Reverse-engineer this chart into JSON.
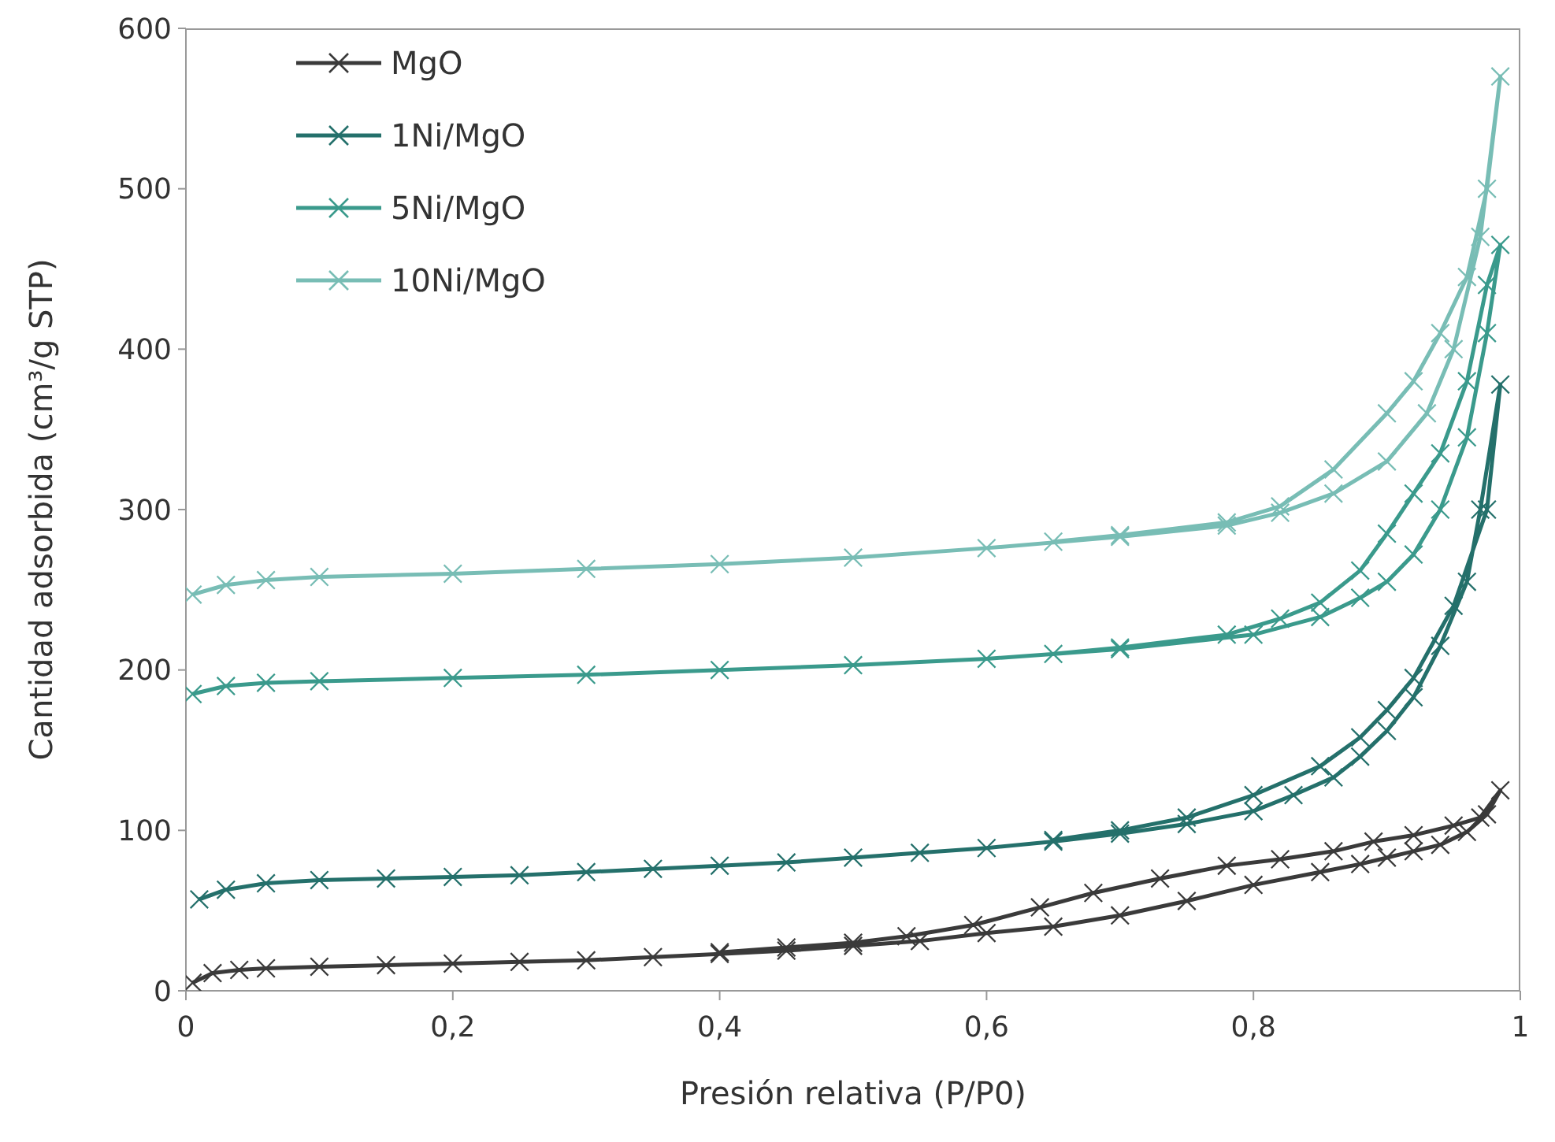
{
  "chart_data": {
    "type": "line",
    "xlabel": "Presión relativa  (P/P0)",
    "ylabel": "Cantidad adsorbida (cm³/g STP)",
    "xlim": [
      0,
      1
    ],
    "ylim": [
      0,
      600
    ],
    "xticks": [
      0,
      {
        "value": 0.2,
        "label": "0,2"
      },
      {
        "value": 0.4,
        "label": "0,4"
      },
      {
        "value": 0.6,
        "label": "0,6"
      },
      {
        "value": 0.8,
        "label": "0,8"
      },
      1
    ],
    "yticks": [
      0,
      100,
      200,
      300,
      400,
      500,
      600
    ],
    "grid": false,
    "legend": "top left",
    "marker": "cross",
    "line_style": "solid",
    "series": [
      {
        "name": "MgO",
        "color": "#3a3a3a",
        "x": [
          0.005,
          0.02,
          0.04,
          0.06,
          0.1,
          0.15,
          0.2,
          0.25,
          0.3,
          0.35,
          0.4,
          0.45,
          0.5,
          0.55,
          0.6,
          0.65,
          0.7,
          0.75,
          0.8,
          0.85,
          0.88,
          0.9,
          0.92,
          0.94,
          0.96,
          0.975,
          0.985,
          0.97,
          0.95,
          0.92,
          0.89,
          0.86,
          0.82,
          0.78,
          0.73,
          0.68,
          0.64,
          0.59,
          0.54,
          0.5,
          0.45,
          0.4
        ],
        "values": [
          5,
          11,
          13,
          14,
          15,
          16,
          17,
          18,
          19,
          21,
          23,
          25,
          28,
          31,
          36,
          40,
          47,
          56,
          66,
          74,
          79,
          83,
          87,
          91,
          99,
          110,
          125,
          108,
          103,
          97,
          93,
          87,
          82,
          78,
          70,
          61,
          52,
          41,
          34,
          30,
          27,
          24
        ]
      },
      {
        "name": "1Ni/MgO",
        "color": "#24706b",
        "x": [
          0.01,
          0.03,
          0.06,
          0.1,
          0.15,
          0.2,
          0.25,
          0.3,
          0.35,
          0.4,
          0.45,
          0.5,
          0.55,
          0.6,
          0.65,
          0.7,
          0.75,
          0.8,
          0.83,
          0.86,
          0.88,
          0.9,
          0.92,
          0.94,
          0.96,
          0.97,
          0.985,
          0.975,
          0.95,
          0.92,
          0.9,
          0.88,
          0.85,
          0.8,
          0.75,
          0.7,
          0.65
        ],
        "values": [
          57,
          63,
          67,
          69,
          70,
          71,
          72,
          74,
          76,
          78,
          80,
          83,
          86,
          89,
          93,
          98,
          104,
          112,
          122,
          133,
          146,
          162,
          183,
          215,
          255,
          300,
          378,
          300,
          240,
          195,
          175,
          158,
          140,
          122,
          108,
          100,
          94
        ]
      },
      {
        "name": "5Ni/MgO",
        "color": "#3a9a8c",
        "x": [
          0.005,
          0.03,
          0.06,
          0.1,
          0.2,
          0.3,
          0.4,
          0.5,
          0.6,
          0.7,
          0.8,
          0.85,
          0.88,
          0.9,
          0.92,
          0.94,
          0.96,
          0.975,
          0.985,
          0.975,
          0.96,
          0.94,
          0.92,
          0.9,
          0.88,
          0.85,
          0.82,
          0.78,
          0.7,
          0.65
        ],
        "values": [
          185,
          190,
          192,
          193,
          195,
          197,
          200,
          203,
          207,
          213,
          222,
          233,
          245,
          255,
          272,
          300,
          345,
          410,
          465,
          440,
          380,
          335,
          310,
          285,
          262,
          242,
          232,
          222,
          214,
          210
        ]
      },
      {
        "name": "10Ni/MgO",
        "color": "#78bdb5",
        "x": [
          0.005,
          0.03,
          0.06,
          0.1,
          0.2,
          0.3,
          0.4,
          0.5,
          0.6,
          0.7,
          0.78,
          0.82,
          0.86,
          0.9,
          0.93,
          0.95,
          0.97,
          0.985,
          0.975,
          0.96,
          0.94,
          0.92,
          0.9,
          0.86,
          0.82,
          0.78,
          0.7,
          0.65
        ],
        "values": [
          247,
          253,
          256,
          258,
          260,
          263,
          266,
          270,
          276,
          283,
          290,
          298,
          310,
          330,
          360,
          400,
          470,
          570,
          500,
          445,
          410,
          380,
          360,
          325,
          302,
          292,
          284,
          280
        ]
      }
    ]
  }
}
